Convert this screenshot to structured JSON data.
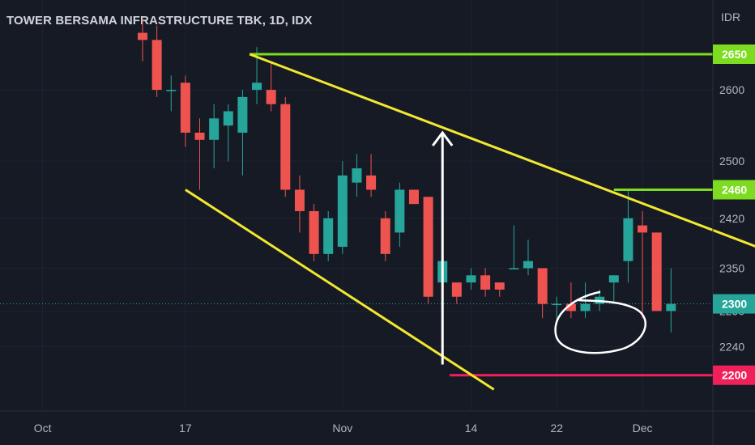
{
  "header": {
    "title": "TOWER BERSAMA INFRASTRUCTURE TBK, 1D, IDX"
  },
  "chart_data": {
    "type": "candlestick",
    "currency": "IDR",
    "y_ticks": [
      2600,
      2500,
      2420,
      2350,
      2290,
      2240
    ],
    "x_ticks": [
      {
        "label": "Oct",
        "index": -7
      },
      {
        "label": "17",
        "index": 3
      },
      {
        "label": "Nov",
        "index": 14
      },
      {
        "label": "14",
        "index": 23
      },
      {
        "label": "22",
        "index": 29
      },
      {
        "label": "Dec",
        "index": 35
      }
    ],
    "candles": [
      {
        "o": 2680,
        "h": 2700,
        "l": 2640,
        "c": 2670
      },
      {
        "o": 2670,
        "h": 2690,
        "l": 2590,
        "c": 2600
      },
      {
        "o": 2600,
        "h": 2620,
        "l": 2570,
        "c": 2600
      },
      {
        "o": 2610,
        "h": 2620,
        "l": 2520,
        "c": 2540
      },
      {
        "o": 2540,
        "h": 2560,
        "l": 2460,
        "c": 2530
      },
      {
        "o": 2530,
        "h": 2580,
        "l": 2490,
        "c": 2560
      },
      {
        "o": 2550,
        "h": 2580,
        "l": 2500,
        "c": 2570
      },
      {
        "o": 2540,
        "h": 2600,
        "l": 2480,
        "c": 2590
      },
      {
        "o": 2600,
        "h": 2660,
        "l": 2580,
        "c": 2610
      },
      {
        "o": 2600,
        "h": 2640,
        "l": 2570,
        "c": 2580
      },
      {
        "o": 2580,
        "h": 2590,
        "l": 2450,
        "c": 2460
      },
      {
        "o": 2460,
        "h": 2480,
        "l": 2400,
        "c": 2430
      },
      {
        "o": 2430,
        "h": 2440,
        "l": 2360,
        "c": 2370
      },
      {
        "o": 2370,
        "h": 2430,
        "l": 2360,
        "c": 2420
      },
      {
        "o": 2380,
        "h": 2500,
        "l": 2370,
        "c": 2480
      },
      {
        "o": 2470,
        "h": 2510,
        "l": 2450,
        "c": 2490
      },
      {
        "o": 2480,
        "h": 2510,
        "l": 2450,
        "c": 2460
      },
      {
        "o": 2420,
        "h": 2430,
        "l": 2360,
        "c": 2370
      },
      {
        "o": 2400,
        "h": 2470,
        "l": 2380,
        "c": 2460
      },
      {
        "o": 2460,
        "h": 2460,
        "l": 2440,
        "c": 2440
      },
      {
        "o": 2450,
        "h": 2450,
        "l": 2300,
        "c": 2310
      },
      {
        "o": 2330,
        "h": 2370,
        "l": 2320,
        "c": 2360
      },
      {
        "o": 2330,
        "h": 2330,
        "l": 2300,
        "c": 2310
      },
      {
        "o": 2330,
        "h": 2350,
        "l": 2320,
        "c": 2340
      },
      {
        "o": 2340,
        "h": 2350,
        "l": 2310,
        "c": 2320
      },
      {
        "o": 2330,
        "h": 2330,
        "l": 2310,
        "c": 2320
      },
      {
        "o": 2350,
        "h": 2410,
        "l": 2350,
        "c": 2350
      },
      {
        "o": 2350,
        "h": 2390,
        "l": 2340,
        "c": 2360
      },
      {
        "o": 2350,
        "h": 2350,
        "l": 2280,
        "c": 2300
      },
      {
        "o": 2300,
        "h": 2310,
        "l": 2270,
        "c": 2300
      },
      {
        "o": 2300,
        "h": 2330,
        "l": 2280,
        "c": 2290
      },
      {
        "o": 2290,
        "h": 2330,
        "l": 2280,
        "c": 2300
      },
      {
        "o": 2300,
        "h": 2320,
        "l": 2290,
        "c": 2310
      },
      {
        "o": 2330,
        "h": 2340,
        "l": 2300,
        "c": 2340
      },
      {
        "o": 2360,
        "h": 2460,
        "l": 2330,
        "c": 2420
      },
      {
        "o": 2410,
        "h": 2430,
        "l": 2280,
        "c": 2400
      },
      {
        "o": 2400,
        "h": 2400,
        "l": 2290,
        "c": 2290
      },
      {
        "o": 2290,
        "h": 2350,
        "l": 2260,
        "c": 2300
      }
    ],
    "levels": [
      {
        "value": 2650,
        "label": "2650",
        "color": "#7ddc1f",
        "from_index": 7.5
      },
      {
        "value": 2460,
        "label": "2460",
        "color": "#7ddc1f",
        "from_index": 33
      },
      {
        "value": 2200,
        "label": "2200",
        "color": "#f0215a",
        "from_index": 21.5
      }
    ],
    "last_price": {
      "value": 2300,
      "label": "2300",
      "color": "#26a69a"
    },
    "trendlines": [
      {
        "from": {
          "index": 7.5,
          "value": 2650
        },
        "to": {
          "index": 43,
          "value": 2380
        },
        "color": "#f2e830"
      },
      {
        "from": {
          "index": 3,
          "value": 2460
        },
        "to": {
          "index": 24.6,
          "value": 2180
        },
        "color": "#f2e830"
      }
    ],
    "arrow": {
      "index": 21,
      "from_value": 2215,
      "to_value": 2540,
      "color": "#ffffff"
    },
    "colors": {
      "up": "#26a69a",
      "down": "#ef5350"
    }
  }
}
